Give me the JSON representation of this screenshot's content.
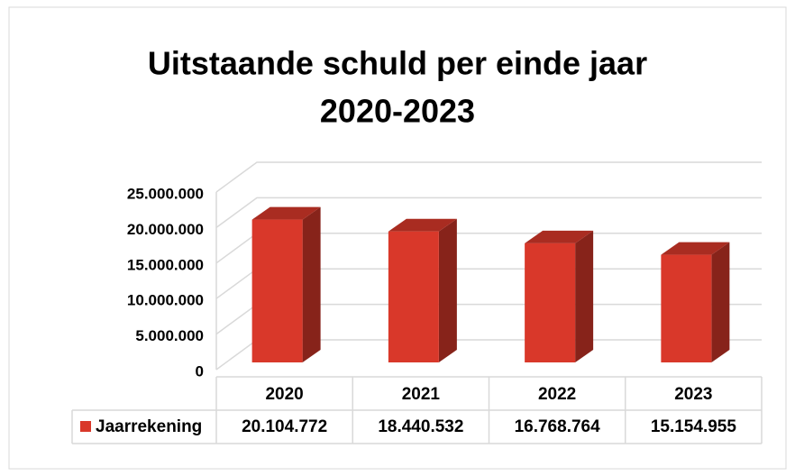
{
  "chart_data": {
    "type": "bar3d",
    "title": [
      "Uitstaande schuld per einde jaar",
      "2020-2023"
    ],
    "categories": [
      "2020",
      "2021",
      "2022",
      "2023"
    ],
    "series": [
      {
        "name": "Jaarrekening",
        "color": "#d9382a",
        "values": [
          20104772,
          18440532,
          16768764,
          15154955
        ],
        "value_labels": [
          "20.104.772",
          "18.440.532",
          "16.768.764",
          "15.154.955"
        ]
      }
    ],
    "ylim": [
      0,
      25000000
    ],
    "yticks": [
      0,
      {
        "value": 5000000,
        "label": "5.000.000"
      },
      {
        "value": 10000000,
        "label": "10.000.000"
      },
      {
        "value": 15000000,
        "label": "15.000.000"
      },
      {
        "value": 20000000,
        "label": "20.000.000"
      },
      {
        "value": 25000000,
        "label": "25.000.000"
      }
    ],
    "grid": true,
    "data_table": true
  }
}
